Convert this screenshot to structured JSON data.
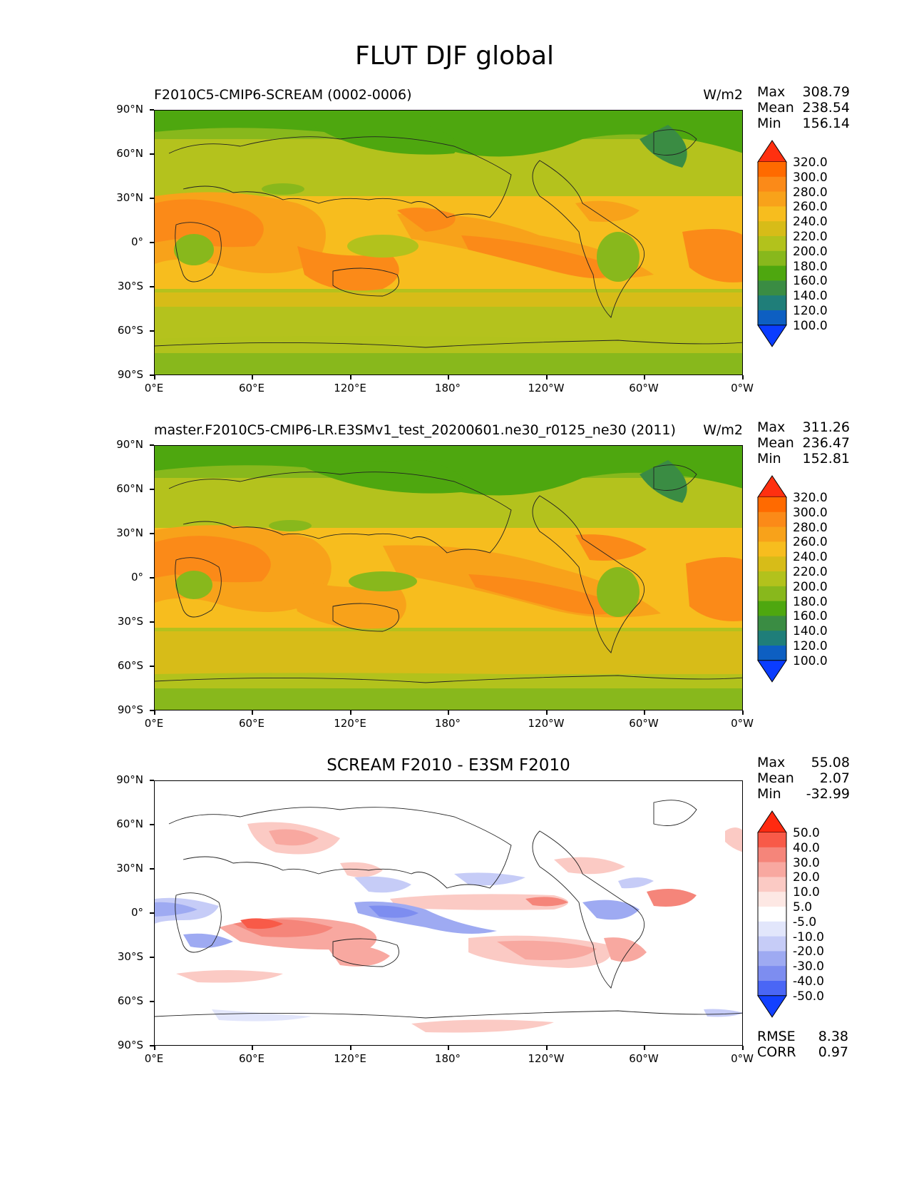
{
  "figure": {
    "title": "FLUT DJF global"
  },
  "panels": [
    {
      "id": "test",
      "title_left": "F2010C5-CMIP6-SCREAM (0002-0006)",
      "title_right": "W/m2",
      "stats": {
        "max_label": "Max",
        "max": "308.79",
        "mean_label": "Mean",
        "mean": "238.54",
        "min_label": "Min",
        "min": "156.14"
      },
      "colorbar": {
        "labels": [
          "320.0",
          "300.0",
          "280.0",
          "260.0",
          "240.0",
          "220.0",
          "200.0",
          "180.0",
          "160.0",
          "140.0",
          "120.0",
          "100.0"
        ],
        "colors": [
          "#ff3010",
          "#ff6a00",
          "#fb8a18",
          "#f8a21a",
          "#f7bd1e",
          "#d7bc18",
          "#b2c21c",
          "#88b81c",
          "#4ea70f",
          "#3a8c43",
          "#1f7e79",
          "#0d5fc2",
          "#0a3cff"
        ]
      }
    },
    {
      "id": "reference",
      "title_left": "master.F2010C5-CMIP6-LR.E3SMv1_test_20200601.ne30_r0125_ne30 (2011)",
      "title_right": "W/m2",
      "stats": {
        "max_label": "Max",
        "max": "311.26",
        "mean_label": "Mean",
        "mean": "236.47",
        "min_label": "Min",
        "min": "152.81"
      },
      "colorbar": {
        "labels": [
          "320.0",
          "300.0",
          "280.0",
          "260.0",
          "240.0",
          "220.0",
          "200.0",
          "180.0",
          "160.0",
          "140.0",
          "120.0",
          "100.0"
        ],
        "colors": [
          "#ff3010",
          "#ff6a00",
          "#fb8a18",
          "#f8a21a",
          "#f7bd1e",
          "#d7bc18",
          "#b2c21c",
          "#88b81c",
          "#4ea70f",
          "#3a8c43",
          "#1f7e79",
          "#0d5fc2",
          "#0a3cff"
        ]
      }
    },
    {
      "id": "difference",
      "title_center": "SCREAM F2010 - E3SM F2010",
      "stats": {
        "max_label": "Max",
        "max": "55.08",
        "mean_label": "Mean",
        "mean": "2.07",
        "min_label": "Min",
        "min": "-32.99"
      },
      "colorbar": {
        "labels": [
          "50.0",
          "40.0",
          "30.0",
          "20.0",
          "10.0",
          "5.0",
          "-5.0",
          "-10.0",
          "-20.0",
          "-30.0",
          "-40.0",
          "-50.0"
        ],
        "colors": [
          "#ff2a10",
          "#f85a48",
          "#f5857a",
          "#f8a8a0",
          "#fbcac4",
          "#fde8e4",
          "#ffffff",
          "#e2e6fb",
          "#c6ccf7",
          "#9eaaf2",
          "#7d8df0",
          "#4a66f5",
          "#1240ff"
        ]
      },
      "metrics": {
        "rmse_label": "RMSE",
        "rmse": "8.38",
        "corr_label": "CORR",
        "corr": "0.97"
      }
    }
  ],
  "axes": {
    "y_ticks": [
      "90°N",
      "60°N",
      "30°N",
      "0°",
      "30°S",
      "60°S",
      "90°S"
    ],
    "x_ticks": [
      "0°E",
      "60°E",
      "120°E",
      "180°",
      "120°W",
      "60°W",
      "0°W"
    ]
  }
}
